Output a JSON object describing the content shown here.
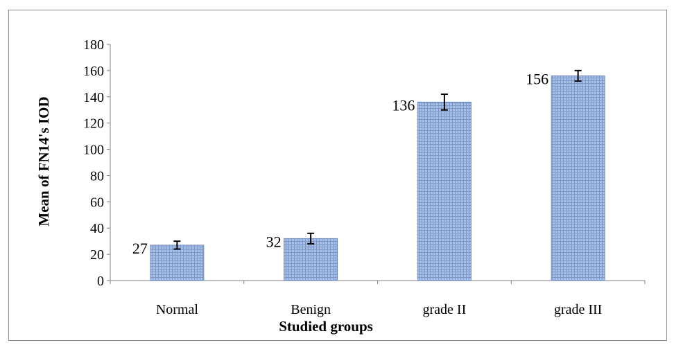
{
  "chart_data": {
    "type": "bar",
    "title": "",
    "xlabel": "Studied groups",
    "ylabel": "Mean of FN14's IOD",
    "ylim": [
      0,
      180
    ],
    "yticks": [
      0,
      20,
      40,
      60,
      80,
      100,
      120,
      140,
      160,
      180
    ],
    "categories": [
      "Normal",
      "Benign",
      "grade II",
      "grade III"
    ],
    "values": [
      27,
      32,
      136,
      156
    ],
    "data_labels": [
      "27",
      "32",
      "136",
      "156"
    ],
    "error": [
      3,
      4,
      6,
      4
    ],
    "grid": false,
    "legend": "none",
    "bar_color": "#a9c0e3",
    "bar_hatch_color": "#7b97c8",
    "bar_border": "#6f8cc1",
    "errorbar_color": "#000000"
  }
}
